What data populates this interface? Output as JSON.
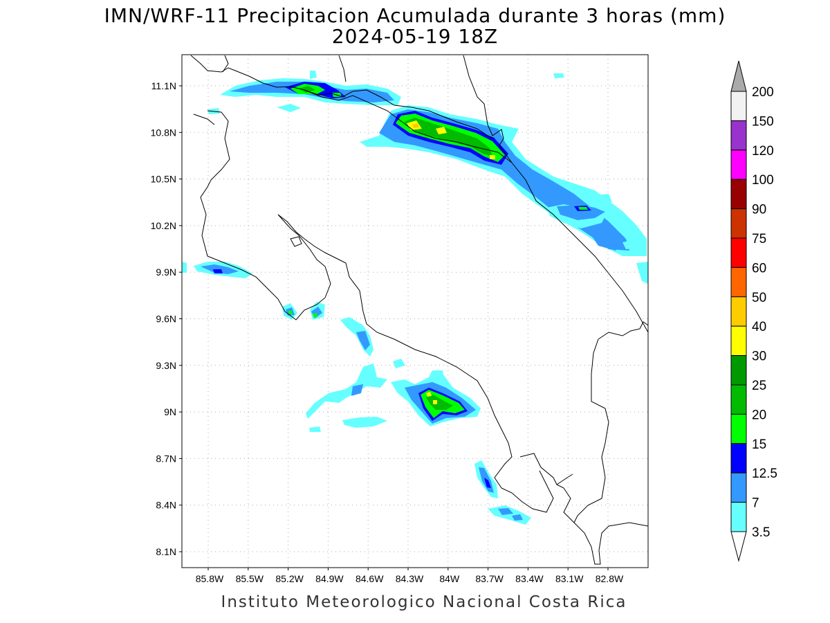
{
  "title_line1": "IMN/WRF-11 Precipitacion Acumulada durante 3 horas (mm)",
  "title_line2": "2024-05-19 18Z",
  "footer": "Instituto Meteorologico Nacional Costa Rica",
  "lat_ticks": [
    "11.1N",
    "10.8N",
    "10.5N",
    "10.2N",
    "9.9N",
    "9.6N",
    "9.3N",
    "9N",
    "8.7N",
    "8.4N",
    "8.1N"
  ],
  "lon_ticks": [
    "85.8W",
    "85.5W",
    "85.2W",
    "84.9W",
    "84.6W",
    "84.3W",
    "84W",
    "83.7W",
    "83.4W",
    "83.1W",
    "82.8W"
  ],
  "legend": {
    "labels": [
      "200",
      "150",
      "120",
      "100",
      "90",
      "75",
      "60",
      "50",
      "40",
      "30",
      "25",
      "20",
      "15",
      "12.5",
      "7",
      "3.5"
    ],
    "colors": [
      "#f2f2f2",
      "#9933cc",
      "#ff00ff",
      "#990000",
      "#cc3300",
      "#ff0000",
      "#ff6600",
      "#ffcc00",
      "#ffff00",
      "#009900",
      "#00bb00",
      "#00ff00",
      "#0000ff",
      "#3399ff",
      "#66ffff"
    ],
    "over_color": "#aaaaaa",
    "under_color": "#ffffff"
  },
  "colors": {
    "c35": "#66ffff",
    "c7": "#3399ff",
    "c125": "#0000ff",
    "c15": "#00ff00",
    "c20": "#00bb00",
    "c25": "#009900",
    "c30": "#ffff00",
    "c40": "#ffcc00"
  }
}
